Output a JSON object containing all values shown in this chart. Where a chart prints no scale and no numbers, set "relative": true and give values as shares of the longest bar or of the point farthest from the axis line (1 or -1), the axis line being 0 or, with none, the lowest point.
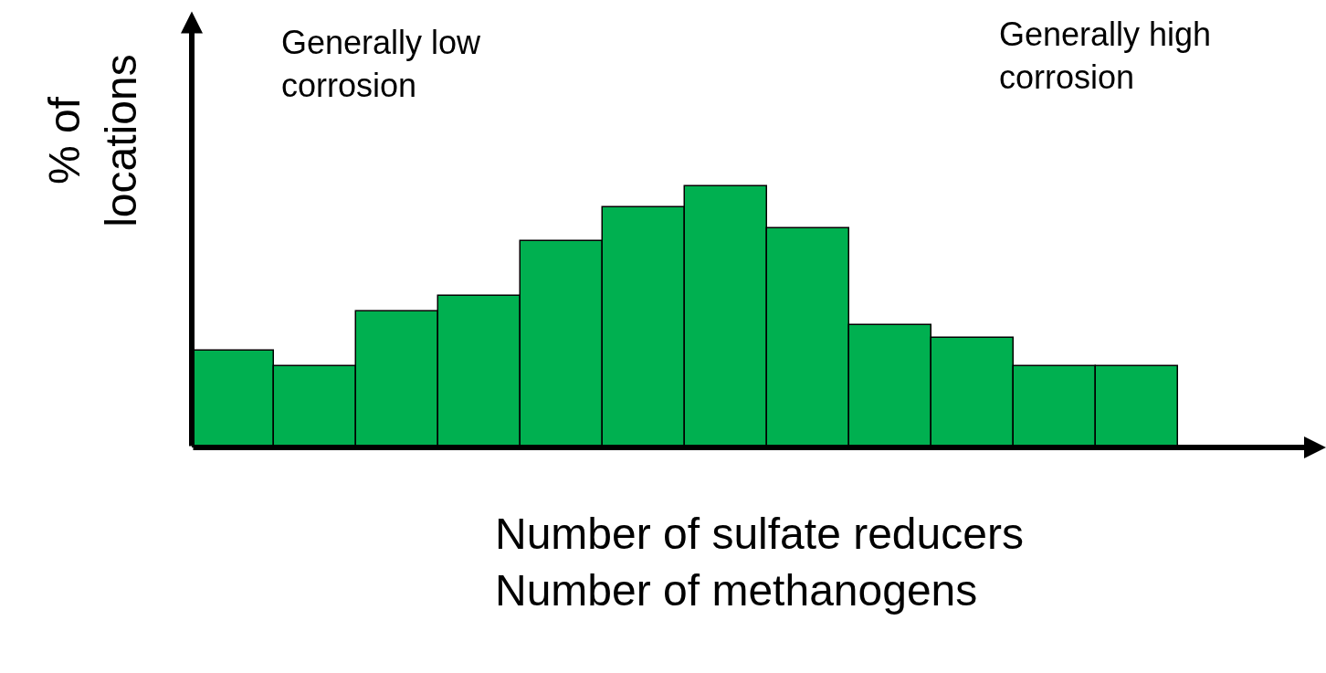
{
  "chart_data": {
    "type": "bar",
    "relative": true,
    "categories": [
      null,
      null,
      null,
      null,
      null,
      null,
      null,
      null,
      null,
      null,
      null,
      null
    ],
    "values": [
      0.37,
      0.31,
      0.52,
      0.58,
      0.79,
      0.92,
      1,
      0.84,
      0.47,
      0.42,
      0.31,
      0.31
    ],
    "color": "#00b050",
    "xlabel": "Number of sulfate reducers\nNumber of methanogens",
    "ylabel": "% of\nlocations",
    "annotations": [
      "Generally low\ncorrosion",
      "Generally high\ncorrosion"
    ],
    "legend": false
  }
}
